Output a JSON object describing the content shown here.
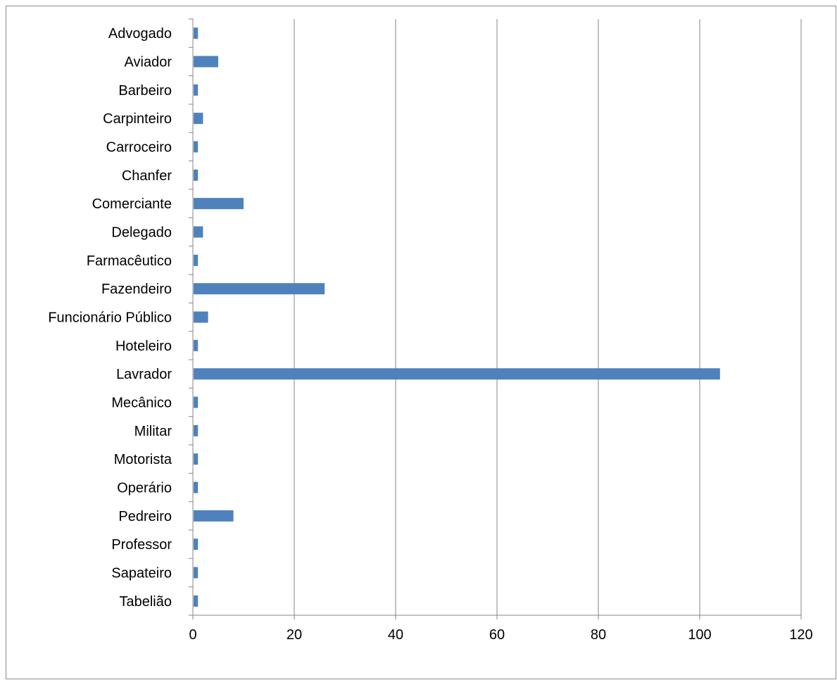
{
  "chart_data": {
    "type": "bar",
    "orientation": "horizontal",
    "categories": [
      "Advogado",
      "Aviador",
      "Barbeiro",
      "Carpinteiro",
      "Carroceiro",
      "Chanfer",
      "Comerciante",
      "Delegado",
      "Farmacêutico",
      "Fazendeiro",
      "Funcionário Público",
      "Hoteleiro",
      "Lavrador",
      "Mecânico",
      "Militar",
      "Motorista",
      "Operário",
      "Pedreiro",
      "Professor",
      "Sapateiro",
      "Tabelião"
    ],
    "values": [
      1,
      5,
      1,
      2,
      1,
      1,
      10,
      2,
      1,
      26,
      3,
      1,
      104,
      1,
      1,
      1,
      1,
      8,
      1,
      1,
      1
    ],
    "xlim": [
      0,
      120
    ],
    "xticks": [
      "0",
      "20",
      "40",
      "60",
      "80",
      "100",
      "120"
    ],
    "vertical_grid": true,
    "legend": "none",
    "bar_color": "#4f81bd",
    "grid_color": "#868686"
  }
}
